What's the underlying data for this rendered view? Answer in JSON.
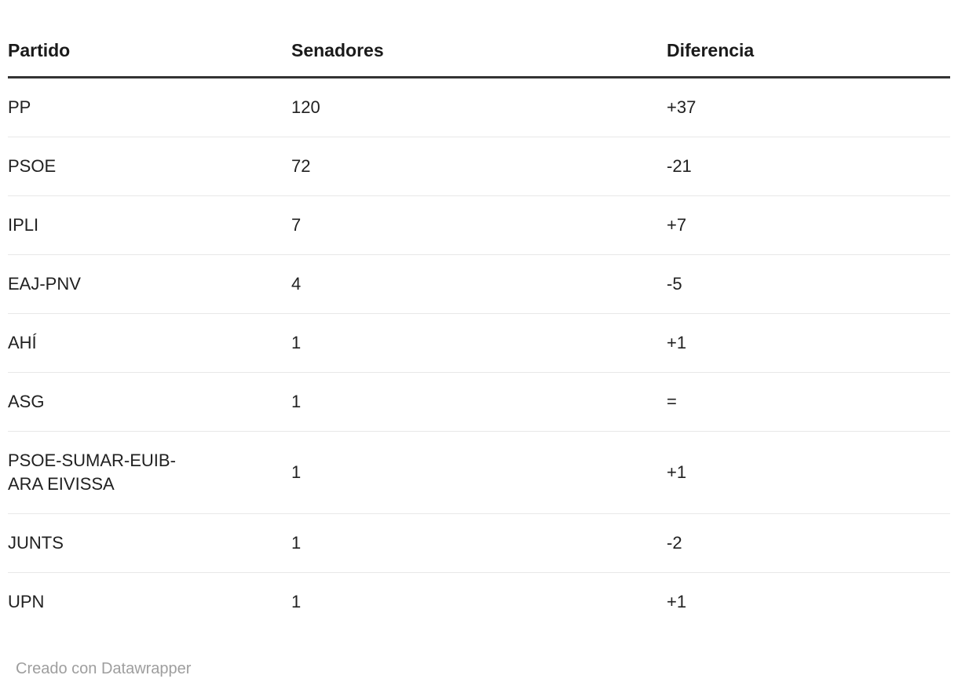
{
  "chart_data": {
    "type": "table",
    "columns": [
      "Partido",
      "Senadores",
      "Diferencia"
    ],
    "rows": [
      [
        "PP",
        "120",
        "+37"
      ],
      [
        "PSOE",
        "72",
        "-21"
      ],
      [
        "IPLI",
        "7",
        "+7"
      ],
      [
        "EAJ-PNV",
        "4",
        "-5"
      ],
      [
        "AHÍ",
        "1",
        "+1"
      ],
      [
        "ASG",
        "1",
        "="
      ],
      [
        "PSOE-SUMAR-EUIB-ARA EIVISSA",
        "1",
        "+1"
      ],
      [
        "JUNTS",
        "1",
        "-2"
      ],
      [
        "UPN",
        "1",
        "+1"
      ]
    ],
    "title": "",
    "legend_position": "none",
    "grid": "row-dividers"
  },
  "footer": {
    "attribution": "Creado con Datawrapper"
  },
  "colors": {
    "background": "#ffffff",
    "text": "#212121",
    "header_text": "#1a1a1a",
    "header_rule": "#333333",
    "row_divider": "#e8e8e8",
    "attribution": "#9e9e9e"
  }
}
